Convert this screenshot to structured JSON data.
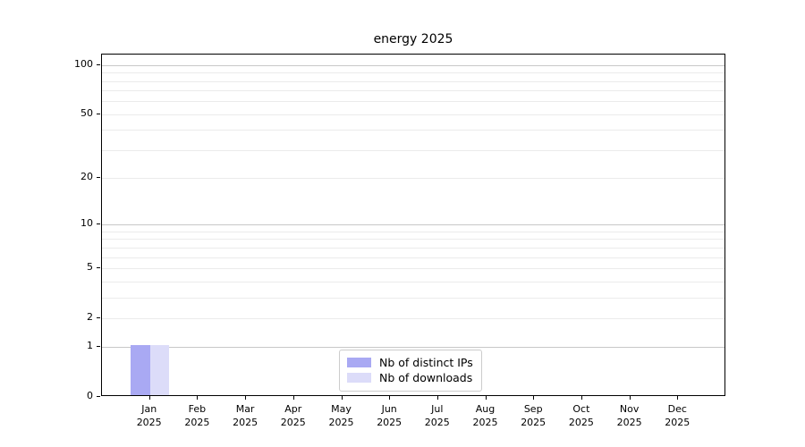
{
  "chart_data": {
    "type": "bar",
    "title": "energy 2025",
    "categories": [
      "Jan",
      "Feb",
      "Mar",
      "Apr",
      "May",
      "Jun",
      "Jul",
      "Aug",
      "Sep",
      "Oct",
      "Nov",
      "Dec"
    ],
    "year_label": "2025",
    "series": [
      {
        "name": "Nb of distinct IPs",
        "color": "#a9a9f3",
        "values": [
          1,
          0,
          0,
          0,
          0,
          0,
          0,
          0,
          0,
          0,
          0,
          0
        ]
      },
      {
        "name": "Nb of downloads",
        "color": "#dcdcf9",
        "values": [
          1,
          0,
          0,
          0,
          0,
          0,
          0,
          0,
          0,
          0,
          0,
          0
        ]
      }
    ],
    "yticks": [
      0,
      1,
      2,
      5,
      10,
      20,
      50,
      100
    ],
    "scale": "log1p",
    "ylim": [
      0,
      116
    ],
    "grid": true,
    "legend_position": "lower center",
    "colors": {
      "grid_minor": "#ebebeb",
      "grid_major": "#c8c8c8",
      "spine": "#000000",
      "text": "#000000"
    }
  }
}
